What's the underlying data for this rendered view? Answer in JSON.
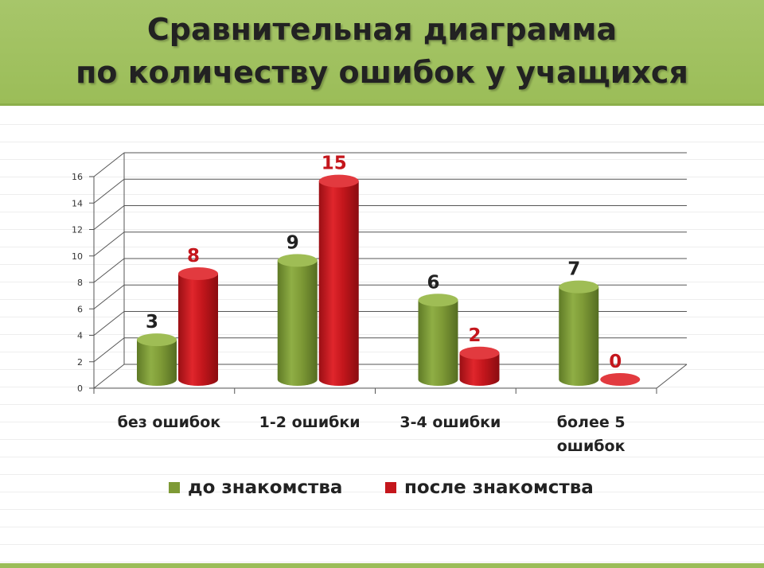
{
  "title": {
    "line1": "Сравнительная диаграмма",
    "line2": "по количеству ошибок  у учащихся"
  },
  "colors": {
    "banner": "#9bbd58",
    "series1": "#7e9a36",
    "series2": "#c4161c",
    "label1": "#222222",
    "label2": "#c4161c"
  },
  "chart_data": {
    "type": "bar",
    "title": "Сравнительная диаграмма по количеству ошибок  у учащихся",
    "categories": [
      [
        "без ошибок"
      ],
      [
        "1-2 ошибки"
      ],
      [
        "3-4 ошибки"
      ],
      [
        "более 5",
        "ошибок"
      ]
    ],
    "series": [
      {
        "name": "до знакомства",
        "values": [
          3,
          9,
          6,
          7
        ]
      },
      {
        "name": "после знакомства",
        "values": [
          8,
          15,
          2,
          0
        ]
      }
    ],
    "ylim": [
      0,
      16
    ],
    "yticks": [
      "0",
      "2",
      "4",
      "6",
      "8",
      "10",
      "12",
      "14",
      "16"
    ],
    "grid": true,
    "legend": "bottom",
    "style": "3d-cylinder"
  }
}
